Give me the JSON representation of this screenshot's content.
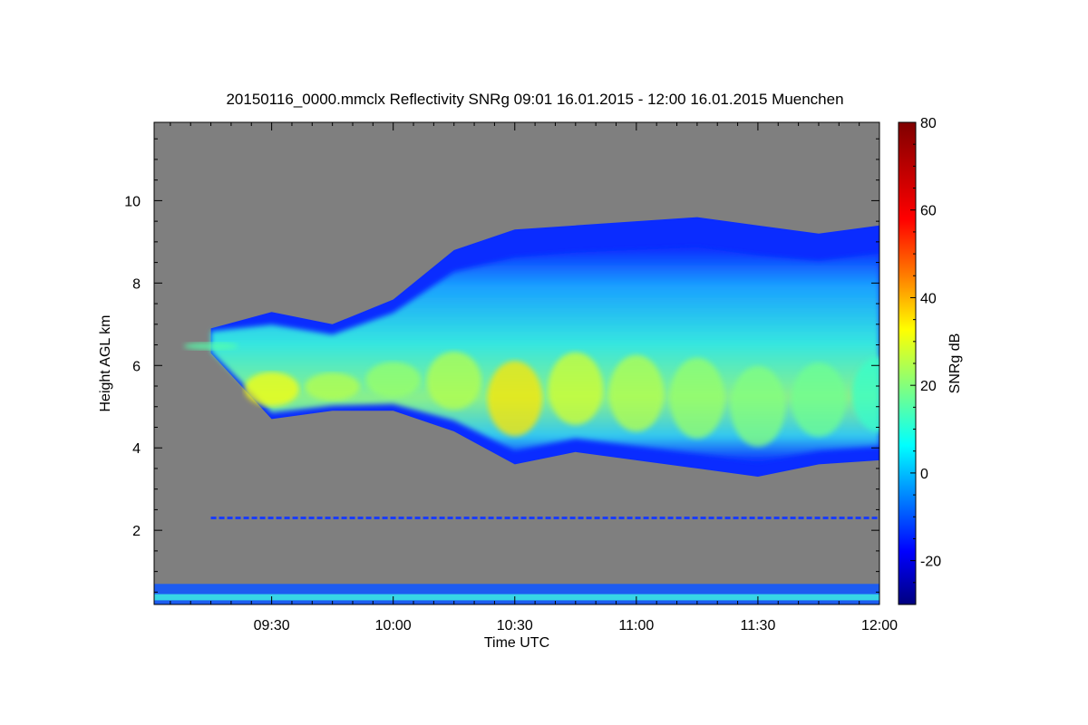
{
  "chart_data": {
    "type": "heatmap",
    "title": "20150116_0000.mmclx Reflectivity SNRg   09:01 16.01.2015 - 12:00 16.01.2015 Muenchen",
    "xlabel": "Time UTC",
    "ylabel": "Height AGL km",
    "colorbar_label": "SNRg dB",
    "x_start": "09:01",
    "x_end": "12:00",
    "ylim": [
      0.2,
      11.9
    ],
    "clim": [
      -30,
      80
    ],
    "x_ticks": [
      "09:30",
      "10:00",
      "10:30",
      "11:00",
      "11:30",
      "12:00"
    ],
    "y_ticks": [
      "2",
      "4",
      "6",
      "8",
      "10"
    ],
    "colorbar_ticks": [
      "-20",
      "0",
      "20",
      "40",
      "60",
      "80"
    ],
    "background_color": "#7f7f7f",
    "colormap": "jet",
    "cloud_layer": {
      "time": [
        "09:15",
        "09:30",
        "09:45",
        "10:00",
        "10:15",
        "10:30",
        "10:45",
        "11:00",
        "11:15",
        "11:30",
        "11:45",
        "12:00"
      ],
      "base_km": [
        6.3,
        4.7,
        4.9,
        4.9,
        4.4,
        3.6,
        3.9,
        3.7,
        3.5,
        3.3,
        3.6,
        3.7
      ],
      "top_km": [
        6.9,
        7.3,
        7.0,
        7.6,
        8.8,
        9.3,
        9.4,
        9.5,
        9.6,
        9.4,
        9.2,
        9.4
      ],
      "peak_snr_db": [
        15,
        32,
        25,
        22,
        25,
        35,
        28,
        25,
        22,
        20,
        18,
        12
      ]
    },
    "noise_band_km": 2.3
  }
}
